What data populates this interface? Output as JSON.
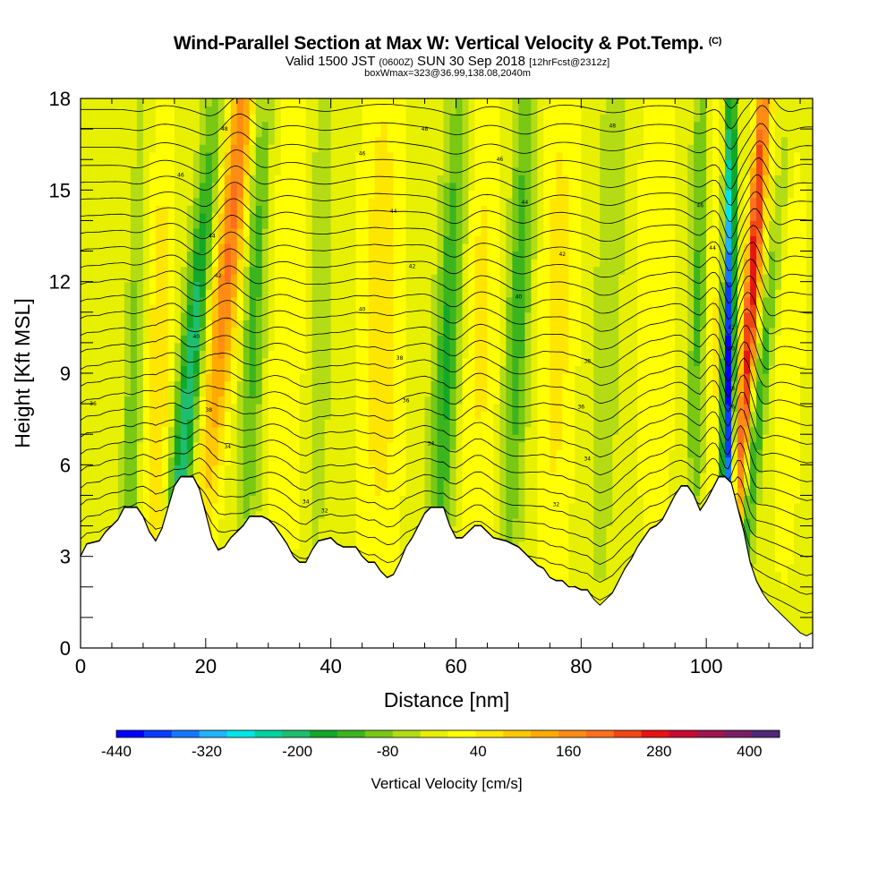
{
  "title": {
    "main": "Wind-Parallel Section at Max W: Vertical Velocity & Pot.Temp.",
    "copyright": "(C)",
    "valid_prefix": "Valid 1500 JST",
    "valid_utc": "(0600Z)",
    "valid_date": "SUN 30 Sep 2018",
    "forecast": "[12hrFcst@2312z]",
    "boxinfo": "boxWmax=323@36.99,138.08,2040m"
  },
  "chart_data": {
    "type": "heatmap",
    "xlabel": "Distance [nm]",
    "ylabel": "Height [Kft MSL]",
    "xlim": [
      0,
      117
    ],
    "ylim": [
      0,
      18
    ],
    "x_ticks": [
      0,
      20,
      40,
      60,
      80,
      100
    ],
    "y_ticks": [
      0,
      3,
      6,
      9,
      12,
      15,
      18
    ],
    "x_minor_step": 5,
    "y_minor_step": 1,
    "colorbar": {
      "title": "Vertical Velocity [cm/s]",
      "min": -440,
      "max": 440,
      "step": 40,
      "tick_values": [
        -440,
        -320,
        -200,
        -80,
        40,
        160,
        280,
        400
      ],
      "colors": [
        "#0000ff",
        "#0a3cff",
        "#1478ff",
        "#1eb4ff",
        "#00e6e6",
        "#00d2a0",
        "#1ebe6e",
        "#14a828",
        "#3cb41e",
        "#78c814",
        "#b4dc14",
        "#e6f000",
        "#ffff00",
        "#ffe600",
        "#ffc800",
        "#ffaa00",
        "#ff8c14",
        "#ff6e1e",
        "#f04614",
        "#e61414",
        "#c80a32",
        "#a01450",
        "#781e64",
        "#502878"
      ]
    },
    "terrain_kft": [
      [
        0,
        3.0
      ],
      [
        1,
        3.4
      ],
      [
        3,
        3.5
      ],
      [
        4,
        3.8
      ],
      [
        5,
        4.0
      ],
      [
        6,
        4.2
      ],
      [
        7,
        4.6
      ],
      [
        9,
        4.6
      ],
      [
        10,
        4.3
      ],
      [
        11,
        3.8
      ],
      [
        12,
        3.5
      ],
      [
        13,
        3.9
      ],
      [
        14,
        4.6
      ],
      [
        15,
        5.3
      ],
      [
        16,
        5.6
      ],
      [
        18,
        5.6
      ],
      [
        19,
        5.2
      ],
      [
        20,
        4.4
      ],
      [
        21,
        3.6
      ],
      [
        22,
        3.2
      ],
      [
        23,
        3.3
      ],
      [
        24,
        3.6
      ],
      [
        25,
        3.8
      ],
      [
        26,
        4.0
      ],
      [
        27,
        4.3
      ],
      [
        29,
        4.3
      ],
      [
        30,
        4.2
      ],
      [
        31,
        4.0
      ],
      [
        32,
        3.7
      ],
      [
        33,
        3.4
      ],
      [
        34,
        3.0
      ],
      [
        35,
        2.8
      ],
      [
        36,
        2.8
      ],
      [
        37,
        3.2
      ],
      [
        38,
        3.5
      ],
      [
        40,
        3.6
      ],
      [
        41,
        3.4
      ],
      [
        42,
        3.3
      ],
      [
        44,
        3.3
      ],
      [
        45,
        3.0
      ],
      [
        46,
        2.8
      ],
      [
        47,
        2.8
      ],
      [
        48,
        2.5
      ],
      [
        49,
        2.3
      ],
      [
        50,
        2.4
      ],
      [
        51,
        2.8
      ],
      [
        52,
        3.3
      ],
      [
        53,
        3.6
      ],
      [
        54,
        4.0
      ],
      [
        55,
        4.4
      ],
      [
        56,
        4.6
      ],
      [
        58,
        4.6
      ],
      [
        59,
        4.0
      ],
      [
        60,
        3.6
      ],
      [
        61,
        3.6
      ],
      [
        62,
        3.8
      ],
      [
        63,
        4.0
      ],
      [
        64,
        4.0
      ],
      [
        65,
        3.8
      ],
      [
        66,
        3.6
      ],
      [
        68,
        3.5
      ],
      [
        69,
        3.4
      ],
      [
        70,
        3.3
      ],
      [
        71,
        3.1
      ],
      [
        72,
        2.9
      ],
      [
        73,
        2.7
      ],
      [
        74,
        2.6
      ],
      [
        75,
        2.3
      ],
      [
        76,
        2.2
      ],
      [
        77,
        2.2
      ],
      [
        78,
        2.0
      ],
      [
        79,
        2.0
      ],
      [
        80,
        1.9
      ],
      [
        81,
        1.9
      ],
      [
        82,
        1.6
      ],
      [
        83,
        1.4
      ],
      [
        84,
        1.6
      ],
      [
        85,
        1.8
      ],
      [
        86,
        2.2
      ],
      [
        87,
        2.6
      ],
      [
        88,
        2.9
      ],
      [
        89,
        3.3
      ],
      [
        90,
        3.6
      ],
      [
        91,
        3.9
      ],
      [
        92,
        4.0
      ],
      [
        93,
        4.2
      ],
      [
        94,
        4.6
      ],
      [
        95,
        5.0
      ],
      [
        96,
        5.3
      ],
      [
        97,
        5.3
      ],
      [
        98,
        5.0
      ],
      [
        99,
        4.5
      ],
      [
        100,
        4.8
      ],
      [
        101,
        5.2
      ],
      [
        102,
        5.6
      ],
      [
        103,
        5.6
      ],
      [
        104,
        5.4
      ],
      [
        105,
        4.6
      ],
      [
        106,
        3.8
      ],
      [
        107,
        2.8
      ],
      [
        108,
        2.2
      ],
      [
        109,
        1.8
      ],
      [
        110,
        1.5
      ],
      [
        111,
        1.3
      ],
      [
        112,
        1.1
      ],
      [
        113,
        0.9
      ],
      [
        114,
        0.7
      ],
      [
        115,
        0.5
      ],
      [
        116,
        0.4
      ],
      [
        117,
        0.5
      ]
    ],
    "w_features": [
      {
        "x": 8.5,
        "z": 6.0,
        "w": -100,
        "tilt": 0.15,
        "width": 1.3
      },
      {
        "x": 12.5,
        "z": 8.0,
        "w": 100,
        "tilt": 0.1,
        "width": 2.0
      },
      {
        "x": 17.5,
        "z": 8.0,
        "w": -220,
        "tilt": 0.45,
        "width": 1.8
      },
      {
        "x": 22.0,
        "z": 14.0,
        "w": 230,
        "tilt": 0.45,
        "width": 2.2
      },
      {
        "x": 27.5,
        "z": 12.0,
        "w": -120,
        "tilt": 0.15,
        "width": 1.8
      },
      {
        "x": 33.0,
        "z": 10.0,
        "w": 60,
        "tilt": 0.1,
        "width": 3.0
      },
      {
        "x": 38.0,
        "z": 12.0,
        "w": -50,
        "tilt": 0.1,
        "width": 2.0
      },
      {
        "x": 48.0,
        "z": 11.0,
        "w": 90,
        "tilt": 0.05,
        "width": 3.5
      },
      {
        "x": 58.5,
        "z": 10.0,
        "w": -160,
        "tilt": 0.25,
        "width": 2.0
      },
      {
        "x": 64.0,
        "z": 11.0,
        "w": 70,
        "tilt": 0.05,
        "width": 3.5
      },
      {
        "x": 69.5,
        "z": 11.0,
        "w": -130,
        "tilt": 0.2,
        "width": 2.0
      },
      {
        "x": 76.0,
        "z": 11.0,
        "w": 80,
        "tilt": 0.1,
        "width": 3.0
      },
      {
        "x": 84.0,
        "z": 12.0,
        "w": -60,
        "tilt": 0.15,
        "width": 2.0
      },
      {
        "x": 92.0,
        "z": 12.0,
        "w": 60,
        "tilt": 0.05,
        "width": 3.0
      },
      {
        "x": 98.5,
        "z": 12.0,
        "w": -110,
        "tilt": 0.1,
        "width": 1.5
      },
      {
        "x": 101.0,
        "z": 10.0,
        "w": 80,
        "tilt": 0.0,
        "width": 1.2
      },
      {
        "x": 103.5,
        "z": 9.0,
        "w": -430,
        "tilt": 0.05,
        "width": 0.9
      },
      {
        "x": 106.5,
        "z": 12.0,
        "w": 330,
        "tilt": 0.3,
        "width": 1.2
      },
      {
        "x": 109.0,
        "z": 6.0,
        "w": -150,
        "tilt": 0.5,
        "width": 1.2
      },
      {
        "x": 113.0,
        "z": 10.0,
        "w": 40,
        "tilt": 0.1,
        "width": 3.0
      }
    ],
    "theta_labels": [
      {
        "x": 2,
        "z": 8.0,
        "text": "36"
      },
      {
        "x": 23,
        "z": 17.0,
        "text": "48"
      },
      {
        "x": 16,
        "z": 15.5,
        "text": "46"
      },
      {
        "x": 21,
        "z": 13.5,
        "text": "44"
      },
      {
        "x": 22,
        "z": 12.2,
        "text": "42"
      },
      {
        "x": 18.5,
        "z": 10.2,
        "text": "40"
      },
      {
        "x": 20.5,
        "z": 7.8,
        "text": "38"
      },
      {
        "x": 23.5,
        "z": 6.6,
        "text": "34"
      },
      {
        "x": 36,
        "z": 4.8,
        "text": "34"
      },
      {
        "x": 39,
        "z": 4.5,
        "text": "32"
      },
      {
        "x": 45,
        "z": 16.2,
        "text": "46"
      },
      {
        "x": 50,
        "z": 14.3,
        "text": "44"
      },
      {
        "x": 53,
        "z": 12.5,
        "text": "42"
      },
      {
        "x": 45,
        "z": 11.1,
        "text": "40"
      },
      {
        "x": 51,
        "z": 9.5,
        "text": "38"
      },
      {
        "x": 52,
        "z": 8.1,
        "text": "36"
      },
      {
        "x": 56,
        "z": 6.7,
        "text": "34"
      },
      {
        "x": 55,
        "z": 17.0,
        "text": "48"
      },
      {
        "x": 67,
        "z": 16.0,
        "text": "46"
      },
      {
        "x": 71,
        "z": 14.6,
        "text": "44"
      },
      {
        "x": 77,
        "z": 12.9,
        "text": "42"
      },
      {
        "x": 70,
        "z": 11.5,
        "text": "40"
      },
      {
        "x": 81,
        "z": 9.4,
        "text": "38"
      },
      {
        "x": 80,
        "z": 7.9,
        "text": "36"
      },
      {
        "x": 81,
        "z": 6.2,
        "text": "34"
      },
      {
        "x": 76,
        "z": 4.7,
        "text": "32"
      },
      {
        "x": 85,
        "z": 17.1,
        "text": "48"
      },
      {
        "x": 99,
        "z": 14.5,
        "text": "46"
      },
      {
        "x": 101,
        "z": 13.1,
        "text": "44"
      },
      {
        "x": 104,
        "z": 10.5,
        "text": "42"
      },
      {
        "x": 104,
        "z": 9.8,
        "text": "40"
      },
      {
        "x": 104,
        "z": 8.5,
        "text": "38"
      },
      {
        "x": 104,
        "z": 7.9,
        "text": "36"
      }
    ]
  }
}
